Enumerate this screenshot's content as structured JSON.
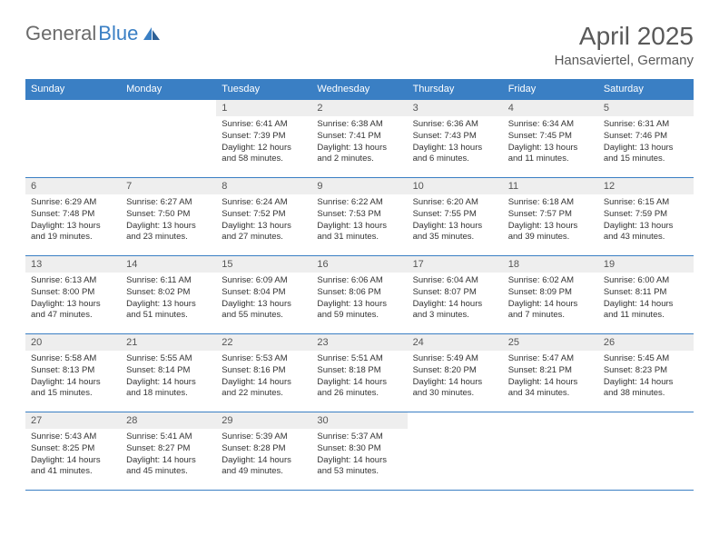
{
  "logo": {
    "text1": "General",
    "text2": "Blue",
    "text_color": "#6b6b6b",
    "blue_color": "#3a7fc4"
  },
  "header": {
    "month_title": "April 2025",
    "location": "Hansaviertel, Germany",
    "title_color": "#595959",
    "title_fontsize": 28,
    "location_fontsize": 15
  },
  "styling": {
    "header_bg": "#3a7fc4",
    "header_text": "#ffffff",
    "daynum_bg": "#eeeeee",
    "daynum_color": "#555555",
    "body_color": "#333333",
    "border_color": "#3a7fc4",
    "page_bg": "#ffffff",
    "header_fontsize": 11,
    "daynum_fontsize": 11,
    "body_fontsize": 9.5
  },
  "day_names": [
    "Sunday",
    "Monday",
    "Tuesday",
    "Wednesday",
    "Thursday",
    "Friday",
    "Saturday"
  ],
  "weeks": [
    [
      null,
      null,
      {
        "n": "1",
        "sr": "Sunrise: 6:41 AM",
        "ss": "Sunset: 7:39 PM",
        "dl": "Daylight: 12 hours and 58 minutes."
      },
      {
        "n": "2",
        "sr": "Sunrise: 6:38 AM",
        "ss": "Sunset: 7:41 PM",
        "dl": "Daylight: 13 hours and 2 minutes."
      },
      {
        "n": "3",
        "sr": "Sunrise: 6:36 AM",
        "ss": "Sunset: 7:43 PM",
        "dl": "Daylight: 13 hours and 6 minutes."
      },
      {
        "n": "4",
        "sr": "Sunrise: 6:34 AM",
        "ss": "Sunset: 7:45 PM",
        "dl": "Daylight: 13 hours and 11 minutes."
      },
      {
        "n": "5",
        "sr": "Sunrise: 6:31 AM",
        "ss": "Sunset: 7:46 PM",
        "dl": "Daylight: 13 hours and 15 minutes."
      }
    ],
    [
      {
        "n": "6",
        "sr": "Sunrise: 6:29 AM",
        "ss": "Sunset: 7:48 PM",
        "dl": "Daylight: 13 hours and 19 minutes."
      },
      {
        "n": "7",
        "sr": "Sunrise: 6:27 AM",
        "ss": "Sunset: 7:50 PM",
        "dl": "Daylight: 13 hours and 23 minutes."
      },
      {
        "n": "8",
        "sr": "Sunrise: 6:24 AM",
        "ss": "Sunset: 7:52 PM",
        "dl": "Daylight: 13 hours and 27 minutes."
      },
      {
        "n": "9",
        "sr": "Sunrise: 6:22 AM",
        "ss": "Sunset: 7:53 PM",
        "dl": "Daylight: 13 hours and 31 minutes."
      },
      {
        "n": "10",
        "sr": "Sunrise: 6:20 AM",
        "ss": "Sunset: 7:55 PM",
        "dl": "Daylight: 13 hours and 35 minutes."
      },
      {
        "n": "11",
        "sr": "Sunrise: 6:18 AM",
        "ss": "Sunset: 7:57 PM",
        "dl": "Daylight: 13 hours and 39 minutes."
      },
      {
        "n": "12",
        "sr": "Sunrise: 6:15 AM",
        "ss": "Sunset: 7:59 PM",
        "dl": "Daylight: 13 hours and 43 minutes."
      }
    ],
    [
      {
        "n": "13",
        "sr": "Sunrise: 6:13 AM",
        "ss": "Sunset: 8:00 PM",
        "dl": "Daylight: 13 hours and 47 minutes."
      },
      {
        "n": "14",
        "sr": "Sunrise: 6:11 AM",
        "ss": "Sunset: 8:02 PM",
        "dl": "Daylight: 13 hours and 51 minutes."
      },
      {
        "n": "15",
        "sr": "Sunrise: 6:09 AM",
        "ss": "Sunset: 8:04 PM",
        "dl": "Daylight: 13 hours and 55 minutes."
      },
      {
        "n": "16",
        "sr": "Sunrise: 6:06 AM",
        "ss": "Sunset: 8:06 PM",
        "dl": "Daylight: 13 hours and 59 minutes."
      },
      {
        "n": "17",
        "sr": "Sunrise: 6:04 AM",
        "ss": "Sunset: 8:07 PM",
        "dl": "Daylight: 14 hours and 3 minutes."
      },
      {
        "n": "18",
        "sr": "Sunrise: 6:02 AM",
        "ss": "Sunset: 8:09 PM",
        "dl": "Daylight: 14 hours and 7 minutes."
      },
      {
        "n": "19",
        "sr": "Sunrise: 6:00 AM",
        "ss": "Sunset: 8:11 PM",
        "dl": "Daylight: 14 hours and 11 minutes."
      }
    ],
    [
      {
        "n": "20",
        "sr": "Sunrise: 5:58 AM",
        "ss": "Sunset: 8:13 PM",
        "dl": "Daylight: 14 hours and 15 minutes."
      },
      {
        "n": "21",
        "sr": "Sunrise: 5:55 AM",
        "ss": "Sunset: 8:14 PM",
        "dl": "Daylight: 14 hours and 18 minutes."
      },
      {
        "n": "22",
        "sr": "Sunrise: 5:53 AM",
        "ss": "Sunset: 8:16 PM",
        "dl": "Daylight: 14 hours and 22 minutes."
      },
      {
        "n": "23",
        "sr": "Sunrise: 5:51 AM",
        "ss": "Sunset: 8:18 PM",
        "dl": "Daylight: 14 hours and 26 minutes."
      },
      {
        "n": "24",
        "sr": "Sunrise: 5:49 AM",
        "ss": "Sunset: 8:20 PM",
        "dl": "Daylight: 14 hours and 30 minutes."
      },
      {
        "n": "25",
        "sr": "Sunrise: 5:47 AM",
        "ss": "Sunset: 8:21 PM",
        "dl": "Daylight: 14 hours and 34 minutes."
      },
      {
        "n": "26",
        "sr": "Sunrise: 5:45 AM",
        "ss": "Sunset: 8:23 PM",
        "dl": "Daylight: 14 hours and 38 minutes."
      }
    ],
    [
      {
        "n": "27",
        "sr": "Sunrise: 5:43 AM",
        "ss": "Sunset: 8:25 PM",
        "dl": "Daylight: 14 hours and 41 minutes."
      },
      {
        "n": "28",
        "sr": "Sunrise: 5:41 AM",
        "ss": "Sunset: 8:27 PM",
        "dl": "Daylight: 14 hours and 45 minutes."
      },
      {
        "n": "29",
        "sr": "Sunrise: 5:39 AM",
        "ss": "Sunset: 8:28 PM",
        "dl": "Daylight: 14 hours and 49 minutes."
      },
      {
        "n": "30",
        "sr": "Sunrise: 5:37 AM",
        "ss": "Sunset: 8:30 PM",
        "dl": "Daylight: 14 hours and 53 minutes."
      },
      null,
      null,
      null
    ]
  ]
}
